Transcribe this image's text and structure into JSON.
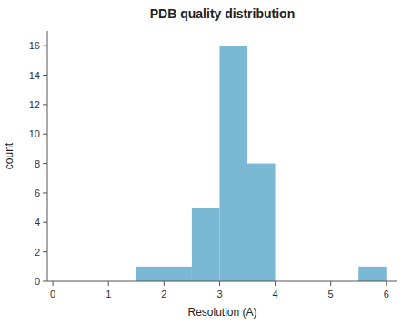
{
  "chart_data": {
    "type": "histogram",
    "title": "PDB quality distribution",
    "x_label": "Resolution (A)",
    "y_label": "count",
    "bins": [
      1.5,
      2.5,
      3.0,
      3.5,
      4.0,
      5.5,
      6.0
    ],
    "values": [
      1,
      5,
      16,
      8,
      0,
      1
    ],
    "color": "#7ab8d4",
    "xlim": [
      -0.1,
      6.2
    ],
    "ylim": [
      0,
      17
    ],
    "xticks": [
      0,
      1,
      2,
      3,
      4,
      5,
      6
    ],
    "yticks": [
      0,
      2,
      4,
      6,
      8,
      10,
      12,
      14,
      16
    ],
    "grid": false
  }
}
